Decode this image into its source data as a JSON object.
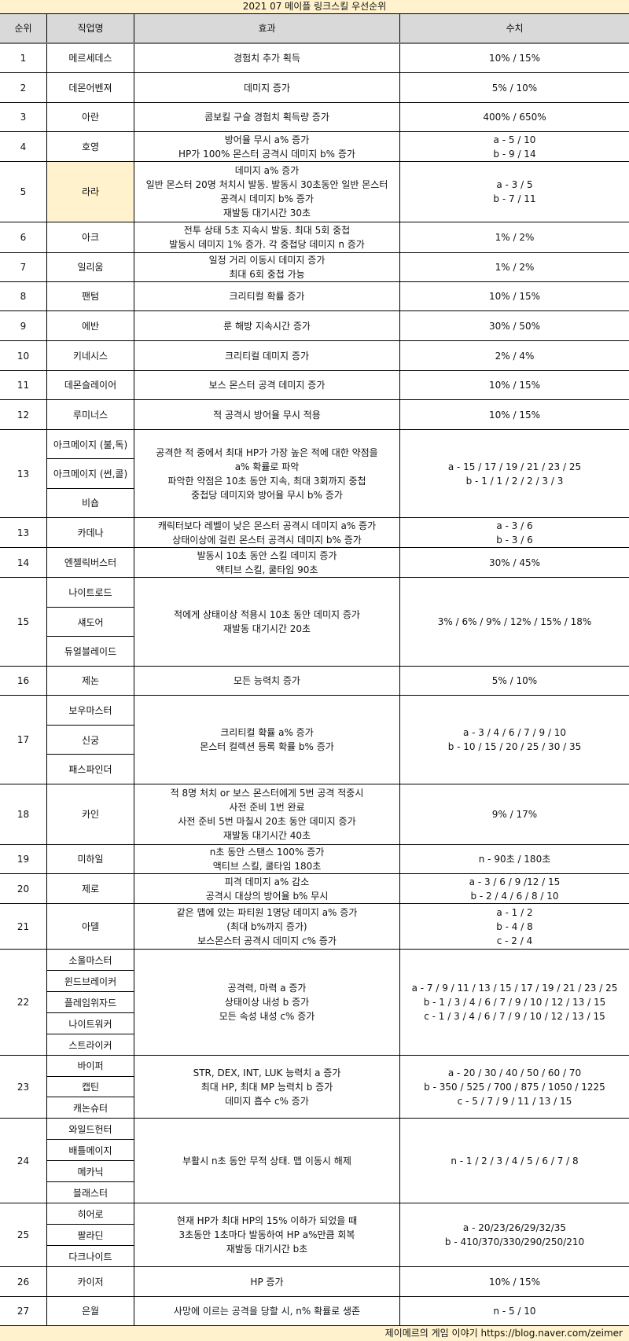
{
  "title": "2021 07 메이플 링크스킬 우선순위",
  "headers": [
    "순위",
    "직업명",
    "효과",
    "수치"
  ],
  "highlight_color": "#fff2cc",
  "header_color": "#d9d9d9",
  "rows": [
    {
      "rank": "1",
      "jobs": [
        "메르세데스"
      ],
      "effect": [
        "경험치 추가 획득"
      ],
      "value": [
        "10% / 15%"
      ]
    },
    {
      "rank": "2",
      "jobs": [
        "데몬어벤져"
      ],
      "effect": [
        "데미지 증가"
      ],
      "value": [
        "5% / 10%"
      ]
    },
    {
      "rank": "3",
      "jobs": [
        "아란"
      ],
      "effect": [
        "콤보킬 구슬 경험치 획득량 증가"
      ],
      "value": [
        "400% / 650%"
      ]
    },
    {
      "rank": "4",
      "jobs": [
        "호영"
      ],
      "effect": [
        "방어율 무시 a% 증가",
        "HP가 100% 몬스터 공격시 데미지 b% 증가"
      ],
      "value": [
        "a - 5 / 10",
        "b - 9 / 14"
      ]
    },
    {
      "rank": "5",
      "jobs": [
        "라라"
      ],
      "highlight": true,
      "effect": [
        "데미지 a% 증가",
        "일반 몬스터 20명 처치시 발동. 발동시 30초동안 일반 몬스터",
        "공격시 데미지 b% 증가",
        "재발동 대기시간 30초"
      ],
      "value": [
        "a - 3 / 5",
        "b - 7 / 11"
      ]
    },
    {
      "rank": "6",
      "jobs": [
        "아크"
      ],
      "effect": [
        "전투 상태 5초 지속시 발동. 최대 5회 중첩",
        "발동시 데미지 1% 증가. 각 중첩당 데미지 n 증가"
      ],
      "value": [
        "1% / 2%"
      ]
    },
    {
      "rank": "7",
      "jobs": [
        "일리움"
      ],
      "effect": [
        "일정 거리 이동시 데미지 증가",
        "최대 6회 중첩 가능"
      ],
      "value": [
        "1% / 2%"
      ]
    },
    {
      "rank": "8",
      "jobs": [
        "팬텀"
      ],
      "effect": [
        "크리티컬 확률 증가"
      ],
      "value": [
        "10% / 15%"
      ]
    },
    {
      "rank": "9",
      "jobs": [
        "에반"
      ],
      "effect": [
        "룬 해방 지속시간 증가"
      ],
      "value": [
        "30% / 50%"
      ]
    },
    {
      "rank": "10",
      "jobs": [
        "키네시스"
      ],
      "effect": [
        "크리티컬 데미지 증가"
      ],
      "value": [
        "2% / 4%"
      ]
    },
    {
      "rank": "11",
      "jobs": [
        "데몬슬레이어"
      ],
      "effect": [
        "보스 몬스터 공격 데미지 증가"
      ],
      "value": [
        "10% / 15%"
      ]
    },
    {
      "rank": "12",
      "jobs": [
        "루미너스"
      ],
      "effect": [
        "적 공격시 방어율 무시 적용"
      ],
      "value": [
        "10% / 15%"
      ]
    },
    {
      "rank": "13",
      "jobs": [
        "아크메이지 (불,독)",
        "아크메이지 (썬,콜)",
        "비숍"
      ],
      "effect": [
        "공격한 적 중에서 최대 HP가 가장 높은 적에 대한 약점을",
        "a% 확률로 파악",
        "파악한 약점은 10초 동안 지속, 최대 3회까지 중첩",
        "중첩당 데미지와 방어율 무시 b% 증가"
      ],
      "value": [
        "a - 15 / 17 / 19 / 21 / 23 / 25",
        "b - 1 / 1 / 2 / 2 / 3 / 3"
      ]
    },
    {
      "rank": "13",
      "jobs": [
        "카데나"
      ],
      "effect": [
        "캐릭터보다 레벨이 낮은 몬스터 공격시 데미지 a% 증가",
        "상태이상에 걸린 몬스터 공격시 데미지 b% 증가"
      ],
      "value": [
        "a - 3 / 6",
        "b - 3 / 6"
      ]
    },
    {
      "rank": "14",
      "jobs": [
        "엔젤릭버스터"
      ],
      "effect": [
        "발동시 10초 동안 스킬 데미지 증가",
        "액티브 스킬, 쿨타임 90초"
      ],
      "value": [
        "30% / 45%"
      ]
    },
    {
      "rank": "15",
      "jobs": [
        "나이트로드",
        "섀도어",
        "듀얼블레이드"
      ],
      "effect": [
        "적에게 상태이상 적용시 10초 동안 데미지 증가",
        "재발동 대기시간 20초"
      ],
      "value": [
        "3% / 6% / 9% / 12% / 15% / 18%"
      ]
    },
    {
      "rank": "16",
      "jobs": [
        "제논"
      ],
      "effect": [
        "모든 능력치 증가"
      ],
      "value": [
        "5% / 10%"
      ]
    },
    {
      "rank": "17",
      "jobs": [
        "보우마스터",
        "신궁",
        "패스파인더"
      ],
      "effect": [
        "크리티컬 확률 a% 증가",
        "몬스터 컬렉션 등록 확률 b% 증가"
      ],
      "value": [
        "a - 3 / 4 / 6 / 7 / 9 / 10",
        "b - 10 / 15 / 20 / 25 / 30 / 35"
      ]
    },
    {
      "rank": "18",
      "jobs": [
        "카인"
      ],
      "effect": [
        "적 8명 처치 or 보스 몬스터에게 5번 공격 적중시",
        "사전 준비 1번 완료",
        "사전 준비 5번 마칠시 20초 동안 데미지 증가",
        "재발동 대기시간 40초"
      ],
      "value": [
        "9% / 17%"
      ]
    },
    {
      "rank": "19",
      "jobs": [
        "미하일"
      ],
      "effect": [
        "n초 동안 스탠스 100% 증가",
        "액티브 스킬, 쿨타임 180초"
      ],
      "value": [
        "n - 90초 / 180초"
      ]
    },
    {
      "rank": "20",
      "jobs": [
        "제로"
      ],
      "effect": [
        "피격 데미지 a% 감소",
        "공격시 대상의 방어율 b% 무시"
      ],
      "value": [
        "a - 3 / 6 / 9 /12 / 15",
        "b - 2 / 4 / 6 / 8 / 10"
      ]
    },
    {
      "rank": "21",
      "jobs": [
        "아델"
      ],
      "effect": [
        "같은 맵에 있는 파티원 1명당 데미지 a% 증가",
        "(최대 b%까지 증가)",
        "보스몬스터 공격시 데미지 c% 증가"
      ],
      "value": [
        "a - 1 / 2",
        "b - 4 / 8",
        "c - 2 / 4"
      ]
    },
    {
      "rank": "22",
      "jobs": [
        "소울마스터",
        "윈드브레이커",
        "플레임위자드",
        "나이트워커",
        "스트라이커"
      ],
      "effect": [
        "공격력, 마력 a 증가",
        "상태이상 내성 b 증가",
        "모든 속성 내성 c% 증가"
      ],
      "value": [
        "a - 7 / 9 / 11 / 13 / 15 / 17 / 19 / 21 / 23 / 25",
        "b - 1 / 3 / 4 / 6 / 7 / 9 / 10 / 12 / 13 / 15",
        "c - 1 / 3 / 4 / 6 / 7 / 9 / 10 / 12 / 13 / 15"
      ]
    },
    {
      "rank": "23",
      "jobs": [
        "바이퍼",
        "캡틴",
        "캐논슈터"
      ],
      "effect": [
        "STR, DEX, INT, LUK 능력치 a 증가",
        "최대 HP, 최대 MP 능력치 b 증가",
        "데미지 흡수 c% 증가"
      ],
      "value": [
        "a - 20 / 30 / 40 / 50 / 60 / 70",
        "b - 350 / 525 / 700 / 875 / 1050 / 1225",
        "c - 5 / 7 / 9 / 11 / 13 / 15"
      ]
    },
    {
      "rank": "24",
      "jobs": [
        "와일드헌터",
        "배틀메이지",
        "메카닉",
        "블래스터"
      ],
      "effect": [
        "부활시 n초 동안 무적 상태. 맵 이동시 해제"
      ],
      "value": [
        "n - 1 / 2 / 3 / 4 / 5 / 6 / 7 / 8"
      ]
    },
    {
      "rank": "25",
      "jobs": [
        "히어로",
        "팔라딘",
        "다크나이트"
      ],
      "effect": [
        "현재 HP가 최대 HP의 15% 이하가 되었을 때",
        "3초동안 1초마다 발동하여 HP a%만큼 회복",
        "재발동 대기시간 b초"
      ],
      "value": [
        "a - 20/23/26/29/32/35",
        "b - 410/370/330/290/250/210"
      ]
    },
    {
      "rank": "26",
      "jobs": [
        "카이저"
      ],
      "effect": [
        "HP 증가"
      ],
      "value": [
        "10% / 15%"
      ]
    },
    {
      "rank": "27",
      "jobs": [
        "은월"
      ],
      "effect": [
        "사망에 이르는 공격을 당할 시, n% 확률로 생존"
      ],
      "value": [
        "n - 5 / 10"
      ]
    }
  ],
  "footer": "제이메르의 게임 이야기 https://blog.naver.com/zeimer"
}
